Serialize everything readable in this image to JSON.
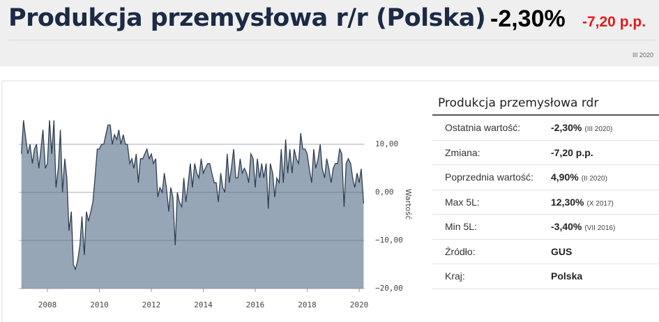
{
  "header": {
    "title": "Produkcja przemysłowa r/r (Polska)",
    "value": "-2,30%",
    "change": "-7,20 p.p.",
    "period": "III 2020"
  },
  "table": {
    "title": "Produkcja przemysłowa rdr",
    "rows": [
      {
        "label": "Ostatnia wartość:",
        "value": "-2,30%",
        "note": "(III 2020)"
      },
      {
        "label": "Zmiana:",
        "value": "-7,20 p.p."
      },
      {
        "label": "Poprzednia wartość:",
        "value": "4,90%",
        "note": "(II 2020)"
      },
      {
        "label": "Max 5L:",
        "value": "12,30%",
        "note": "(X 2017)"
      },
      {
        "label": "Min 5L:",
        "value": "-3,40%",
        "note": "(VII 2016)"
      },
      {
        "label": "Źródło:",
        "value": "GUS"
      },
      {
        "label": "Kraj:",
        "value": "Polska"
      }
    ]
  },
  "chart_data": {
    "type": "area",
    "y_label": "Wartość",
    "fill": "#97a6b7",
    "color": "#2f3e4f",
    "grid": true,
    "xlim": [
      2006.9,
      2020.2
    ],
    "xticks": [
      2008,
      2010,
      2012,
      2014,
      2016,
      2018,
      2020
    ],
    "ylim": [
      -20,
      18
    ],
    "yticks": [
      {
        "value": 10,
        "label": "10,00"
      },
      {
        "value": 0,
        "label": "0,00"
      },
      {
        "value": -10,
        "label": "−10,00"
      },
      {
        "value": -20,
        "label": "−20,00"
      }
    ],
    "x": [
      2007,
      2007.08,
      2007.17,
      2007.25,
      2007.33,
      2007.42,
      2007.5,
      2007.58,
      2007.67,
      2007.75,
      2007.83,
      2007.92,
      2008,
      2008.08,
      2008.17,
      2008.25,
      2008.33,
      2008.42,
      2008.5,
      2008.58,
      2008.67,
      2008.75,
      2008.83,
      2008.92,
      2009,
      2009.08,
      2009.17,
      2009.25,
      2009.33,
      2009.42,
      2009.5,
      2009.58,
      2009.67,
      2009.75,
      2009.83,
      2009.92,
      2010,
      2010.08,
      2010.17,
      2010.25,
      2010.33,
      2010.42,
      2010.5,
      2010.58,
      2010.67,
      2010.75,
      2010.83,
      2010.92,
      2011,
      2011.08,
      2011.17,
      2011.25,
      2011.33,
      2011.42,
      2011.5,
      2011.58,
      2011.67,
      2011.75,
      2011.83,
      2011.92,
      2012,
      2012.08,
      2012.17,
      2012.25,
      2012.33,
      2012.42,
      2012.5,
      2012.58,
      2012.67,
      2012.75,
      2012.83,
      2012.92,
      2013,
      2013.08,
      2013.17,
      2013.25,
      2013.33,
      2013.42,
      2013.5,
      2013.58,
      2013.67,
      2013.75,
      2013.83,
      2013.92,
      2014,
      2014.08,
      2014.17,
      2014.25,
      2014.33,
      2014.42,
      2014.5,
      2014.58,
      2014.67,
      2014.75,
      2014.83,
      2014.92,
      2015,
      2015.08,
      2015.17,
      2015.25,
      2015.33,
      2015.42,
      2015.5,
      2015.58,
      2015.67,
      2015.75,
      2015.83,
      2015.92,
      2016,
      2016.08,
      2016.17,
      2016.25,
      2016.33,
      2016.42,
      2016.5,
      2016.58,
      2016.67,
      2016.75,
      2016.83,
      2016.92,
      2017,
      2017.08,
      2017.17,
      2017.25,
      2017.33,
      2017.42,
      2017.5,
      2017.58,
      2017.67,
      2017.75,
      2017.83,
      2017.92,
      2018,
      2018.08,
      2018.17,
      2018.25,
      2018.33,
      2018.42,
      2018.5,
      2018.58,
      2018.67,
      2018.75,
      2018.83,
      2018.92,
      2019,
      2019.08,
      2019.17,
      2019.25,
      2019.33,
      2019.42,
      2019.5,
      2019.58,
      2019.67,
      2019.75,
      2019.83,
      2019.92,
      2020,
      2020.08,
      2020.17
    ],
    "values": [
      8,
      15,
      11,
      8,
      10,
      6,
      9,
      10,
      5,
      9,
      13,
      5,
      6,
      15,
      8,
      15,
      1,
      5,
      13,
      0,
      7,
      3,
      -8,
      -4,
      -15,
      -16,
      -14,
      -11,
      -5,
      -13,
      -4,
      -6,
      -4,
      -2,
      3,
      9,
      9,
      10,
      10,
      12,
      14,
      14,
      10,
      12,
      11,
      13,
      10,
      12,
      10,
      10,
      6,
      7,
      5,
      8,
      2,
      7,
      7,
      8,
      9,
      7,
      8,
      6,
      7,
      -1,
      1,
      0,
      4,
      1,
      -4,
      1,
      -1,
      -11,
      0,
      -2,
      -3,
      3,
      -2,
      2,
      6,
      1,
      6,
      4,
      3,
      7,
      4,
      5,
      6,
      6,
      4,
      2,
      2,
      -2,
      4,
      1,
      0,
      8,
      2,
      5,
      9,
      3,
      3,
      7,
      4,
      5,
      4,
      2,
      8,
      7,
      1,
      7,
      3,
      6,
      3,
      6,
      -3.4,
      6,
      4,
      -1,
      3,
      2,
      9,
      2,
      11,
      4,
      9,
      4,
      9,
      7,
      6,
      12.3,
      9,
      9,
      8,
      5,
      2,
      9,
      5,
      7,
      10,
      5,
      3,
      7,
      5,
      2,
      5,
      6,
      6,
      9,
      8,
      -3,
      6,
      7,
      6,
      3,
      1,
      4,
      2,
      4.9,
      -2.3
    ]
  }
}
